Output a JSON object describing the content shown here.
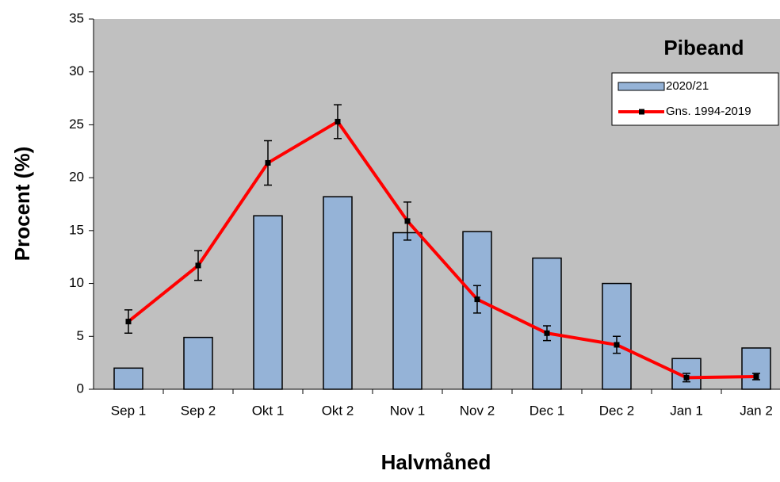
{
  "chart_data": {
    "type": "bar-line",
    "title": "Pibeand",
    "y_label": "Procent (%)",
    "x_label": "Halvmåned",
    "categories": [
      "Sep 1",
      "Sep 2",
      "Okt 1",
      "Okt 2",
      "Nov 1",
      "Nov 2",
      "Dec 1",
      "Dec 2",
      "Jan 1",
      "Jan 2"
    ],
    "series": [
      {
        "name": "2020/21",
        "type": "bar",
        "color": "#95b3d7",
        "values": [
          2.0,
          4.9,
          16.4,
          18.2,
          14.8,
          14.9,
          12.4,
          10.0,
          2.9,
          3.9
        ]
      },
      {
        "name": "Gns. 1994-2019",
        "type": "line",
        "color": "#ff0000",
        "values": [
          6.4,
          11.7,
          21.4,
          25.3,
          15.9,
          8.5,
          5.3,
          4.2,
          1.1,
          1.2
        ],
        "errors": [
          1.1,
          1.4,
          2.1,
          1.6,
          1.8,
          1.3,
          0.7,
          0.8,
          0.4,
          0.3
        ]
      }
    ],
    "ylim": [
      0,
      35
    ],
    "yticks": [
      0,
      5,
      10,
      15,
      20,
      25,
      30,
      35
    ],
    "grid": false,
    "legend": "upper right",
    "background": "#c0c0c0"
  }
}
